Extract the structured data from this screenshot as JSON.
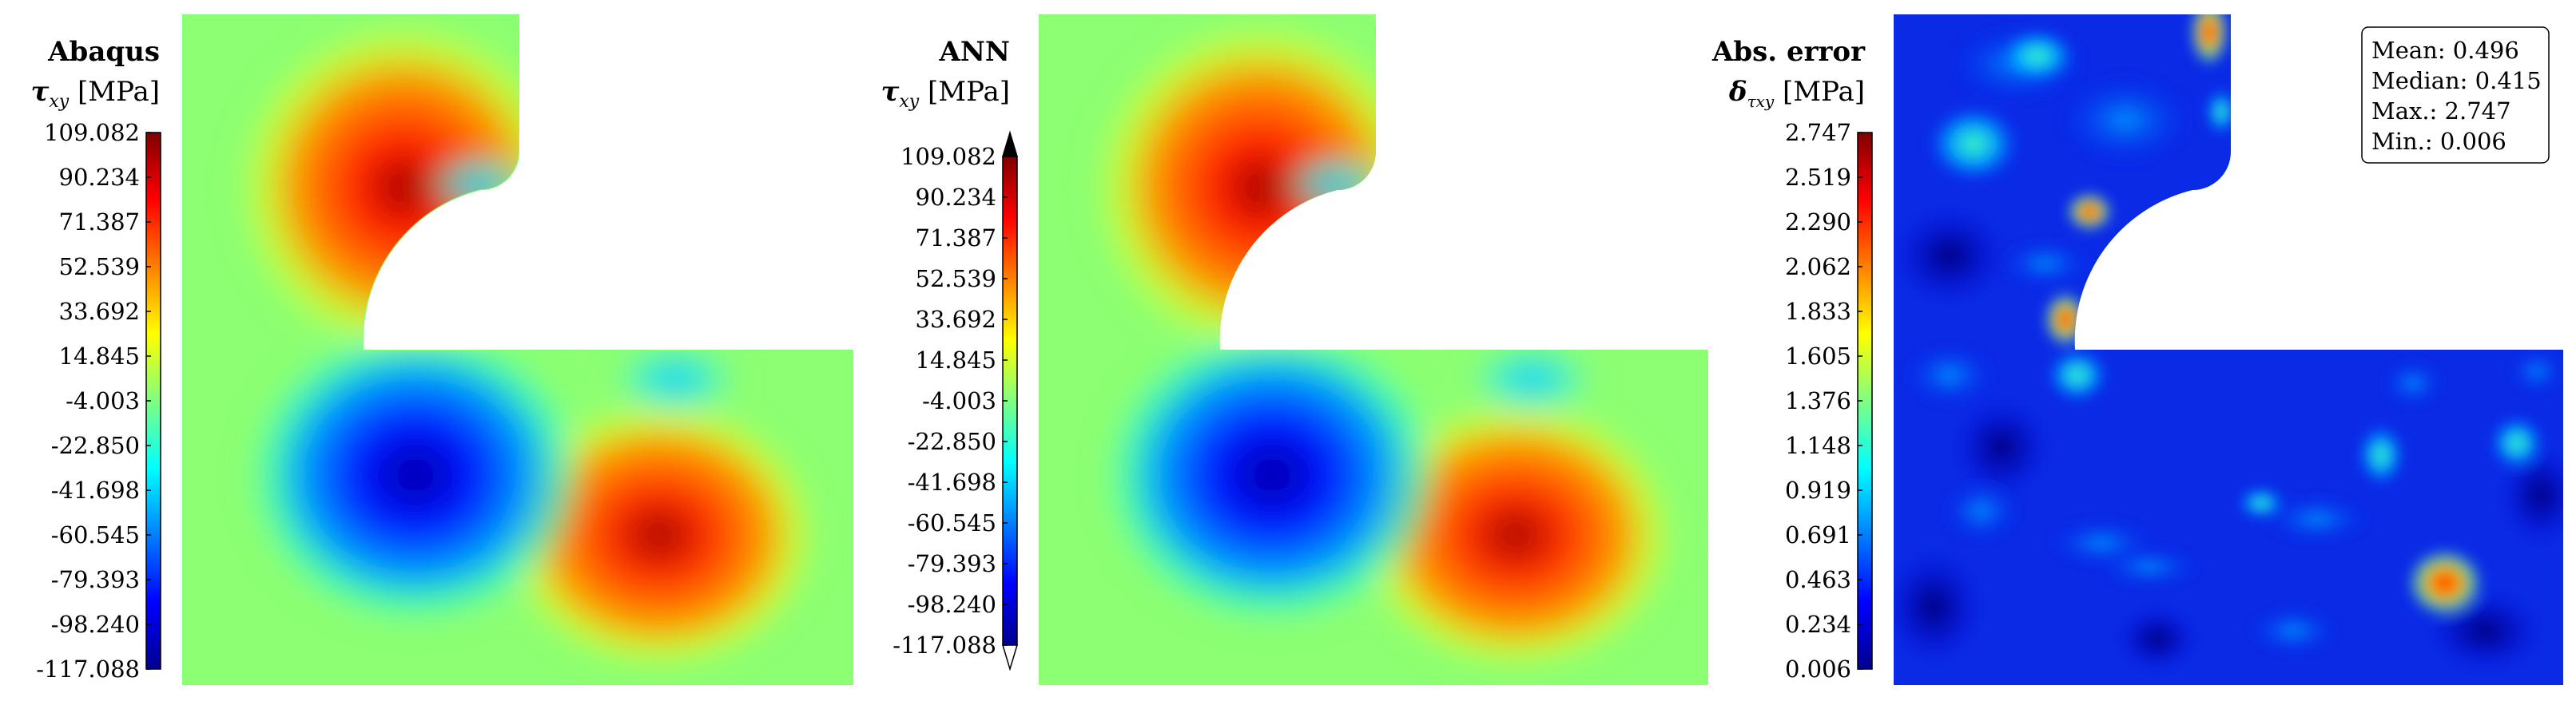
{
  "chart_data": [
    {
      "type": "heatmap",
      "title": "Abaqus",
      "quantity": "τ",
      "quantity_sub": "xy",
      "unit": "[MPa]",
      "colormap": "jet",
      "colorbar_ticks": [
        "109.082",
        "90.234",
        "71.387",
        "52.539",
        "33.692",
        "14.845",
        "-4.003",
        "-22.850",
        "-41.698",
        "-60.545",
        "-79.393",
        "-98.240",
        "-117.088"
      ],
      "range": [
        -117.088,
        109.082
      ],
      "colorbar_extend": false
    },
    {
      "type": "heatmap",
      "title": "ANN",
      "quantity": "τ",
      "quantity_sub": "xy",
      "unit": "[MPa]",
      "colormap": "jet",
      "colorbar_ticks": [
        "109.082",
        "90.234",
        "71.387",
        "52.539",
        "33.692",
        "14.845",
        "-4.003",
        "-22.850",
        "-41.698",
        "-60.545",
        "-79.393",
        "-98.240",
        "-117.088"
      ],
      "range": [
        -117.088,
        109.082
      ],
      "colorbar_extend": true
    },
    {
      "type": "heatmap",
      "title": "Abs. error",
      "quantity": "δ",
      "quantity_sub": "τxy",
      "unit": "[MPa]",
      "colormap": "jet",
      "colorbar_ticks": [
        "2.747",
        "2.519",
        "2.290",
        "2.062",
        "1.833",
        "1.605",
        "1.376",
        "1.148",
        "0.919",
        "0.691",
        "0.463",
        "0.234",
        "0.006"
      ],
      "range": [
        0.006,
        2.747
      ],
      "colorbar_extend": false,
      "stats": [
        "Mean: 0.496",
        "Median: 0.415",
        "Max.: 2.747",
        "Min.: 0.006"
      ]
    }
  ]
}
